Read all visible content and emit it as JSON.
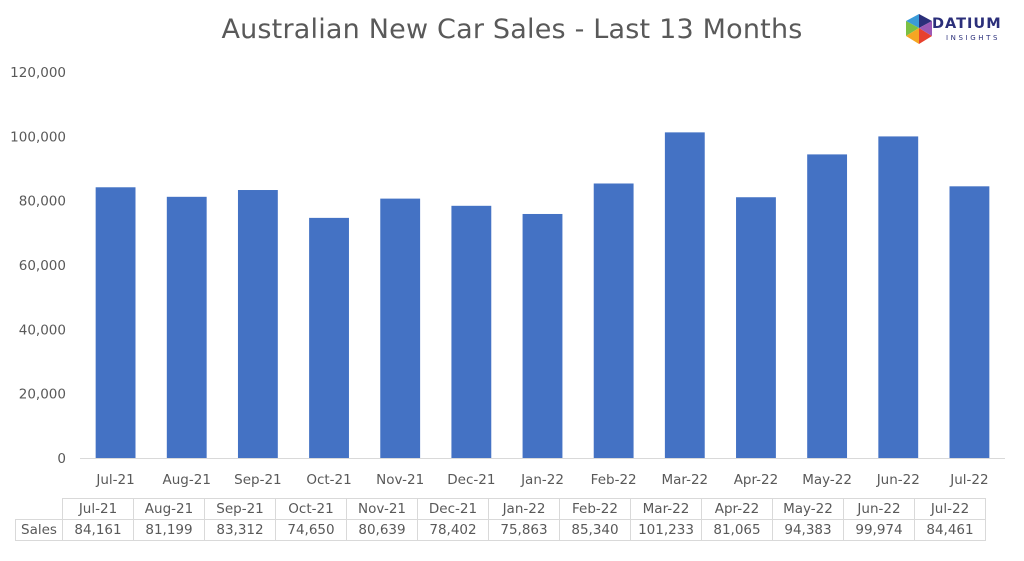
{
  "chart_data": {
    "type": "bar",
    "title": "Australian New Car Sales  - Last 13 Months",
    "categories": [
      "Jul-21",
      "Aug-21",
      "Sep-21",
      "Oct-21",
      "Nov-21",
      "Dec-21",
      "Jan-22",
      "Feb-22",
      "Mar-22",
      "Apr-22",
      "May-22",
      "Jun-22",
      "Jul-22"
    ],
    "series": [
      {
        "name": "Sales",
        "values": [
          84161,
          81199,
          83312,
          74650,
          80639,
          78402,
          75863,
          85340,
          101233,
          81065,
          94383,
          99974,
          84461
        ],
        "color": "#4472c4"
      }
    ],
    "ylim": [
      0,
      120000
    ],
    "yticks": [
      0,
      20000,
      40000,
      60000,
      80000,
      100000,
      120000
    ],
    "ytick_labels": [
      "0",
      "20,000",
      "40,000",
      "60,000",
      "80,000",
      "100,000",
      "120,000"
    ],
    "grid": false,
    "data_table": {
      "row_label": "Sales",
      "values": [
        "84,161",
        "81,199",
        "83,312",
        "74,650",
        "80,639",
        "78,402",
        "75,863",
        "85,340",
        "101,233",
        "81,065",
        "94,383",
        "99,974",
        "84,461"
      ]
    }
  },
  "logo": {
    "word": "DATIUM",
    "sub": "INSIGHTS",
    "colors": [
      "#f5a623",
      "#e8412e",
      "#3a9bd9",
      "#2b2f7a",
      "#7bc043"
    ]
  }
}
